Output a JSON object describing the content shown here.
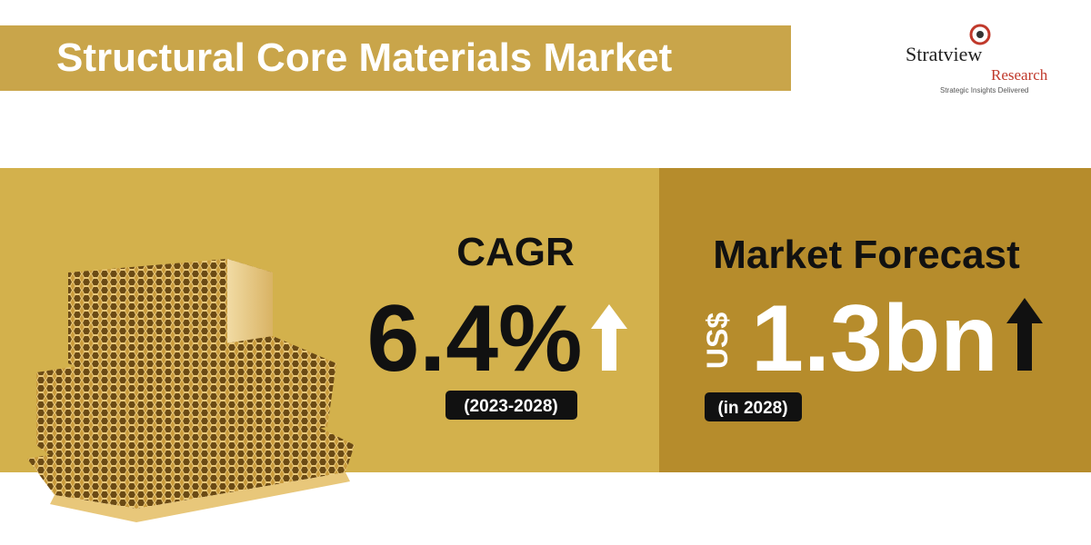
{
  "header": {
    "title": "Structural Core Materials Market"
  },
  "logo": {
    "name": "Stratview",
    "sub": "Research",
    "tagline": "Strategic Insights Delivered"
  },
  "cagr": {
    "label": "CAGR",
    "value": "6.4%",
    "period": "(2023-2028)"
  },
  "forecast": {
    "label": "Market Forecast",
    "currency": "US$",
    "value": "1.3bn",
    "note": "(in 2028)"
  }
}
